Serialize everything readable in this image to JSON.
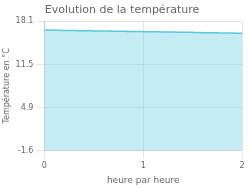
{
  "chart_data": {
    "type": "area",
    "title": "Evolution de la température",
    "xlabel": "heure par heure",
    "ylabel": "Température en °C",
    "x": [
      0.0,
      0.083,
      0.167,
      0.25,
      0.333,
      0.417,
      0.5,
      0.583,
      0.667,
      0.75,
      0.833,
      0.917,
      1.0,
      1.083,
      1.167,
      1.25,
      1.333,
      1.417,
      1.5,
      1.583,
      1.667,
      1.75,
      1.833,
      1.917,
      2.0
    ],
    "values": [
      16.8,
      16.75,
      16.72,
      16.7,
      16.68,
      16.66,
      16.64,
      16.62,
      16.6,
      16.58,
      16.56,
      16.54,
      16.52,
      16.5,
      16.48,
      16.46,
      16.44,
      16.42,
      16.4,
      16.38,
      16.36,
      16.34,
      16.32,
      16.3,
      16.28
    ],
    "color": "#5bc8dc",
    "line_style": "step",
    "xlim": [
      0,
      2
    ],
    "ylim": [
      -1.6,
      18.1
    ],
    "xticks": [
      0,
      1,
      2
    ],
    "yticks": [
      -1.6,
      4.9,
      11.5,
      18.1
    ],
    "grid": true
  }
}
